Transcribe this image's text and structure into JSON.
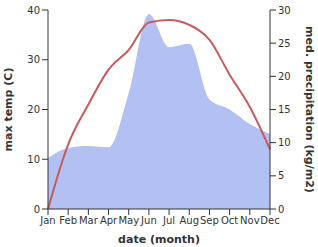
{
  "chart_data": {
    "type": "line",
    "x_label": "date (month)",
    "y_label": "max temp (C)",
    "y2_label": "med. precipitation (kg/m2)",
    "categories": [
      "Jan",
      "Feb",
      "Mar",
      "Apr",
      "May",
      "Jun",
      "Jul",
      "Aug",
      "Sep",
      "Oct",
      "Nov",
      "Dec"
    ],
    "ylim": [
      0,
      40
    ],
    "yticks": [
      0,
      10,
      20,
      30,
      40
    ],
    "y2lim": [
      0,
      30
    ],
    "y2ticks": [
      0,
      5,
      10,
      15,
      20,
      25,
      30
    ],
    "series": [
      {
        "name": "med. precipitation",
        "type": "area",
        "axis": "y2",
        "color": "#b3c1f2",
        "values": [
          7.7,
          9.2,
          9.5,
          9.3,
          17.5,
          29.4,
          24.4,
          24.9,
          16.5,
          15,
          12.8,
          11.3
        ]
      },
      {
        "name": "max temp",
        "type": "line",
        "color": "#c65a5c",
        "values": [
          0,
          13,
          21,
          28,
          32,
          37.5,
          38,
          37,
          34,
          27,
          20.5,
          12
        ]
      }
    ]
  }
}
